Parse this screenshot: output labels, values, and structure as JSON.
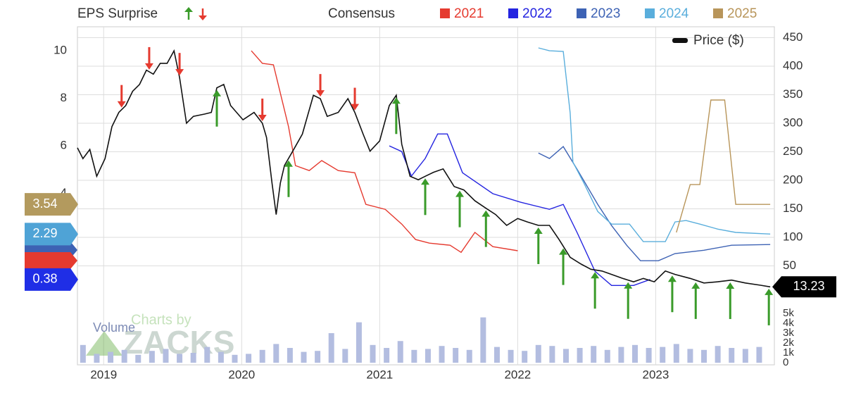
{
  "chart_data": {
    "type": "line",
    "eps_label": "EPS Surprise",
    "consensus_label": "Consensus",
    "volume_label": "Volume",
    "watermark": [
      "Charts by",
      "ZACKS"
    ],
    "grid": true,
    "xlim": [
      2018.81,
      2023.86
    ],
    "xticks": [
      2019,
      2020,
      2021,
      2022,
      2023
    ],
    "ylim": [
      -3.21,
      11.01
    ],
    "yticks": [
      4,
      6,
      8,
      10
    ],
    "y2lim": [
      -123.5,
      469.1
    ],
    "y2ticks": [
      50,
      100,
      150,
      200,
      250,
      300,
      350,
      400,
      450
    ],
    "series": [
      {
        "name": "2021",
        "color": "#e53a2f",
        "x": [
          2020.07,
          2020.15,
          2020.23,
          2020.29,
          2020.34,
          2020.39,
          2020.49,
          2020.58,
          2020.7,
          2020.82,
          2020.9,
          2021.04,
          2021.16,
          2021.26,
          2021.36,
          2021.51,
          2021.59,
          2021.69,
          2021.82,
          2022.0
        ],
        "values": [
          10.0,
          9.47,
          9.41,
          7.99,
          6.8,
          5.17,
          4.96,
          5.38,
          4.96,
          4.87,
          3.54,
          3.33,
          2.71,
          2.06,
          1.91,
          1.82,
          1.52,
          2.36,
          1.76,
          1.59
        ]
      },
      {
        "name": "2022",
        "color": "#2424e0",
        "x": [
          2021.07,
          2021.16,
          2021.23,
          2021.33,
          2021.42,
          2021.49,
          2021.6,
          2021.82,
          2022.02,
          2022.23,
          2022.33,
          2022.43,
          2022.56,
          2022.68,
          2022.84,
          2022.96
        ],
        "values": [
          6.0,
          5.76,
          4.73,
          5.47,
          6.5,
          6.5,
          4.87,
          3.99,
          3.63,
          3.33,
          3.54,
          2.36,
          0.73,
          0.13,
          0.13,
          0.38
        ]
      },
      {
        "name": "2023",
        "color": "#3d62b4",
        "x": [
          2022.15,
          2022.23,
          2022.33,
          2022.43,
          2022.58,
          2022.68,
          2022.79,
          2022.89,
          2023.02,
          2023.14,
          2023.35,
          2023.55,
          2023.83
        ],
        "values": [
          5.7,
          5.47,
          5.97,
          5.02,
          3.54,
          2.65,
          1.82,
          1.17,
          1.17,
          1.47,
          1.61,
          1.82,
          1.85
        ]
      },
      {
        "name": "2024",
        "color": "#5aaedc",
        "x": [
          2022.15,
          2022.23,
          2022.33,
          2022.38,
          2022.4,
          2022.48,
          2022.58,
          2022.68,
          2022.81,
          2022.91,
          2023.07,
          2023.14,
          2023.22,
          2023.32,
          2023.45,
          2023.58,
          2023.83
        ],
        "values": [
          10.12,
          10.0,
          9.97,
          7.39,
          5.32,
          4.43,
          3.24,
          2.71,
          2.71,
          1.97,
          1.97,
          2.8,
          2.86,
          2.71,
          2.5,
          2.36,
          2.29
        ]
      },
      {
        "name": "2025",
        "color": "#b8955a",
        "x": [
          2023.15,
          2023.25,
          2023.32,
          2023.4,
          2023.5,
          2023.58,
          2023.83
        ],
        "values": [
          2.36,
          4.37,
          4.37,
          7.93,
          7.93,
          3.54,
          3.54
        ]
      },
      {
        "name": "Price ($)",
        "color": "#111111",
        "axis": "y2",
        "x": [
          2018.81,
          2018.85,
          2018.9,
          2018.95,
          2019.01,
          2019.06,
          2019.11,
          2019.16,
          2019.21,
          2019.26,
          2019.31,
          2019.36,
          2019.41,
          2019.46,
          2019.51,
          2019.55,
          2019.6,
          2019.65,
          2019.73,
          2019.78,
          2019.82,
          2019.87,
          2019.92,
          2020.01,
          2020.09,
          2020.15,
          2020.18,
          2020.22,
          2020.25,
          2020.28,
          2020.31,
          2020.37,
          2020.44,
          2020.52,
          2020.57,
          2020.62,
          2020.7,
          2020.77,
          2020.82,
          2020.88,
          2020.93,
          2021.0,
          2021.07,
          2021.12,
          2021.16,
          2021.22,
          2021.28,
          2021.33,
          2021.39,
          2021.46,
          2021.54,
          2021.61,
          2021.69,
          2021.77,
          2021.84,
          2021.92,
          2022.0,
          2022.07,
          2022.15,
          2022.23,
          2022.3,
          2022.38,
          2022.46,
          2022.53,
          2022.61,
          2022.68,
          2022.76,
          2022.84,
          2022.91,
          2022.99,
          2023.07,
          2023.14,
          2023.25,
          2023.35,
          2023.45,
          2023.55,
          2023.65,
          2023.76,
          2023.83
        ],
        "values": [
          257,
          238,
          254,
          207,
          238,
          294,
          319,
          331,
          356,
          368,
          393,
          386,
          405,
          405,
          427,
          380,
          300,
          312,
          316,
          319,
          362,
          368,
          331,
          306,
          319,
          300,
          275,
          195,
          140,
          195,
          226,
          251,
          281,
          349,
          343,
          312,
          319,
          343,
          319,
          281,
          251,
          269,
          331,
          349,
          263,
          207,
          201,
          207,
          214,
          220,
          189,
          183,
          164,
          151,
          140,
          121,
          133,
          127,
          121,
          121,
          96,
          65,
          53,
          44,
          41,
          35,
          28,
          22,
          28,
          22,
          41,
          35,
          28,
          20,
          22,
          25,
          20,
          16,
          13.23
        ]
      }
    ],
    "badges": [
      {
        "value": 3.54,
        "color": "#b39a5e"
      },
      {
        "value": 2.29,
        "color": "#4fa3d6"
      },
      {
        "value": 0.38,
        "color": "#1f2ee6"
      }
    ],
    "surprises": [
      {
        "x": 2019.13,
        "direction": "down"
      },
      {
        "x": 2019.33,
        "direction": "down"
      },
      {
        "x": 2019.55,
        "direction": "down"
      },
      {
        "x": 2019.82,
        "direction": "up"
      },
      {
        "x": 2020.15,
        "direction": "down"
      },
      {
        "x": 2020.34,
        "direction": "up"
      },
      {
        "x": 2020.57,
        "direction": "down"
      },
      {
        "x": 2020.82,
        "direction": "down"
      },
      {
        "x": 2021.12,
        "direction": "up"
      },
      {
        "x": 2021.33,
        "direction": "up"
      },
      {
        "x": 2021.58,
        "direction": "up"
      },
      {
        "x": 2021.77,
        "direction": "up"
      },
      {
        "x": 2022.15,
        "direction": "up"
      },
      {
        "x": 2022.33,
        "direction": "up"
      },
      {
        "x": 2022.56,
        "direction": "up"
      },
      {
        "x": 2022.8,
        "direction": "up"
      },
      {
        "x": 2023.12,
        "direction": "up"
      },
      {
        "x": 2023.29,
        "direction": "up"
      },
      {
        "x": 2023.54,
        "direction": "up"
      },
      {
        "x": 2023.82,
        "direction": "up"
      }
    ],
    "volume": {
      "color": "#b3bde0",
      "ylim": [
        0,
        5360
      ],
      "yticks": [
        {
          "value": 0,
          "label": "0"
        },
        {
          "value": 1000,
          "label": "1k"
        },
        {
          "value": 2000,
          "label": "2k"
        },
        {
          "value": 3000,
          "label": "3k"
        },
        {
          "value": 4000,
          "label": "4k"
        },
        {
          "value": 5000,
          "label": "5k"
        }
      ],
      "x": [
        2018.85,
        2018.95,
        2019.05,
        2019.15,
        2019.25,
        2019.35,
        2019.45,
        2019.55,
        2019.65,
        2019.75,
        2019.85,
        2019.95,
        2020.05,
        2020.15,
        2020.25,
        2020.35,
        2020.45,
        2020.55,
        2020.65,
        2020.75,
        2020.85,
        2020.95,
        2021.05,
        2021.15,
        2021.25,
        2021.35,
        2021.45,
        2021.55,
        2021.65,
        2021.75,
        2021.85,
        2021.95,
        2022.05,
        2022.15,
        2022.25,
        2022.35,
        2022.45,
        2022.55,
        2022.65,
        2022.75,
        2022.85,
        2022.95,
        2023.05,
        2023.15,
        2023.25,
        2023.35,
        2023.45,
        2023.55,
        2023.65,
        2023.75
      ],
      "values": [
        1800,
        900,
        1100,
        1300,
        800,
        1200,
        1400,
        900,
        1000,
        1600,
        1100,
        800,
        900,
        1300,
        1900,
        1500,
        1100,
        1200,
        3000,
        1400,
        4100,
        1800,
        1500,
        2200,
        1300,
        1400,
        1700,
        1500,
        1300,
        4600,
        1600,
        1300,
        1200,
        1800,
        1700,
        1400,
        1500,
        1700,
        1300,
        1600,
        1800,
        1500,
        1600,
        1900,
        1400,
        1300,
        1700,
        1500,
        1400,
        1600
      ]
    }
  }
}
